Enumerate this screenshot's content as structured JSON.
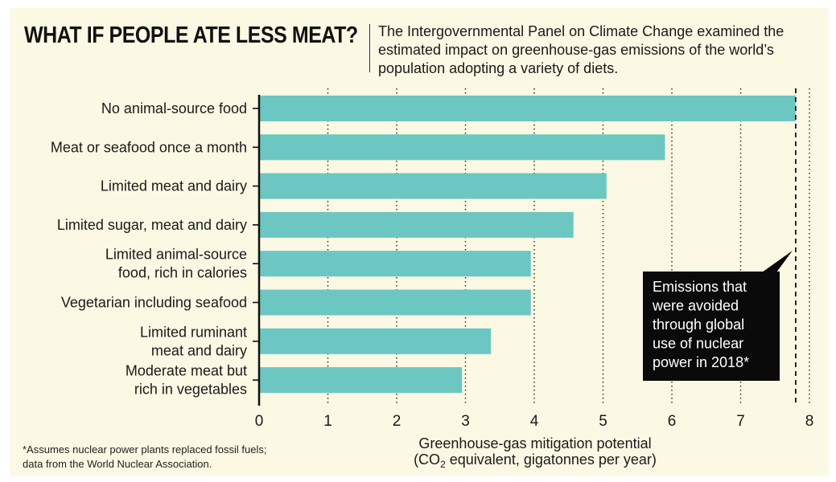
{
  "header": {
    "title": "WHAT IF PEOPLE ATE LESS MEAT?",
    "subtitle": "The Intergovernmental Panel on Climate Change examined the estimated impact on greenhouse-gas emissions of the world’s population adopting a variety of diets."
  },
  "footnote": [
    "*Assumes nuclear power plants replaced fossil fuels;",
    "data from the World Nuclear Association."
  ],
  "colors": {
    "bar": "#6cc7c2",
    "panel": "#fbf8e4",
    "callout": "#0a0a0a"
  },
  "chart_data": {
    "type": "bar",
    "orientation": "horizontal",
    "categories": [
      [
        "No animal-source food"
      ],
      [
        "Meat or seafood once a month"
      ],
      [
        "Limited meat and dairy"
      ],
      [
        "Limited sugar, meat and dairy"
      ],
      [
        "Limited animal-source",
        "food, rich in calories"
      ],
      [
        "Vegetarian including seafood"
      ],
      [
        "Limited ruminant",
        "meat and dairy"
      ],
      [
        "Moderate meat but",
        "rich in vegetables"
      ]
    ],
    "values": [
      7.8,
      5.9,
      5.05,
      4.57,
      3.95,
      3.95,
      3.37,
      2.95
    ],
    "xlim": [
      0,
      8
    ],
    "xticks": [
      "0",
      "1",
      "2",
      "3",
      "4",
      "5",
      "6",
      "7",
      "8"
    ],
    "xlabel": "Greenhouse-gas mitigation potential",
    "xlabel_unit_parts": [
      "(CO",
      "2",
      " equivalent, gigatonnes per year)"
    ],
    "grid": "vertical dotted",
    "reference_line": {
      "value": 7.8,
      "style": "dashed",
      "label": [
        "Emissions that",
        "were avoided",
        "through global",
        "use of nuclear",
        "power in 2018*"
      ]
    }
  }
}
